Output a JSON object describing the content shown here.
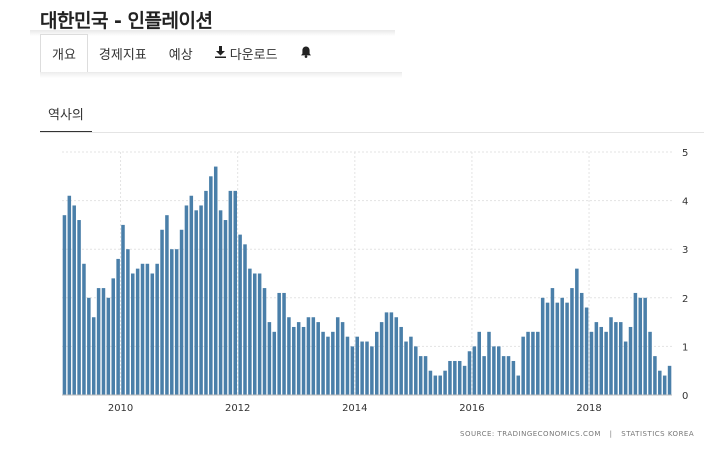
{
  "header": {
    "title": "대한민국 - 인플레이션"
  },
  "tabs": [
    {
      "label": "개요",
      "active": true,
      "icon": ""
    },
    {
      "label": "경제지표",
      "active": false,
      "icon": ""
    },
    {
      "label": "예상",
      "active": false,
      "icon": ""
    },
    {
      "label": "다운로드",
      "active": false,
      "icon": "download-icon"
    },
    {
      "label": "",
      "active": false,
      "icon": "bell-icon"
    }
  ],
  "subtab": {
    "label": "역사의"
  },
  "source": {
    "left": "SOURCE: TRADINGECONOMICS.COM",
    "sep": "|",
    "right": "STATISTICS KOREA"
  },
  "colors": {
    "bar": "#4a7fa9",
    "grid": "#e3e3e3"
  },
  "chart_data": {
    "type": "bar",
    "title": "",
    "xlabel": "",
    "ylabel": "",
    "ylim": [
      0,
      5
    ],
    "yticks": [
      0,
      1,
      2,
      3,
      4,
      5
    ],
    "xticks": [
      "2010",
      "2012",
      "2014",
      "2016",
      "2018"
    ],
    "grid": true,
    "start": "2009-01",
    "frequency": "monthly",
    "series": [
      {
        "values": [
          3.7,
          4.1,
          3.9,
          3.6,
          2.7,
          2.0,
          1.6,
          2.2,
          2.2,
          2.0,
          2.4,
          2.8,
          3.5,
          3.0,
          2.5,
          2.6,
          2.7,
          2.7,
          2.5,
          2.7,
          3.4,
          3.7,
          3.0,
          3.0,
          3.4,
          3.9,
          4.1,
          3.8,
          3.9,
          4.2,
          4.5,
          4.7,
          3.8,
          3.6,
          4.2,
          4.2,
          3.3,
          3.1,
          2.6,
          2.5,
          2.5,
          2.2,
          1.5,
          1.3,
          2.1,
          2.1,
          1.6,
          1.4,
          1.5,
          1.4,
          1.6,
          1.6,
          1.5,
          1.3,
          1.2,
          1.3,
          1.6,
          1.5,
          1.2,
          1.0,
          1.2,
          1.1,
          1.1,
          1.0,
          1.3,
          1.5,
          1.7,
          1.7,
          1.6,
          1.4,
          1.1,
          1.2,
          1.0,
          0.8,
          0.8,
          0.5,
          0.4,
          0.4,
          0.5,
          0.7,
          0.7,
          0.7,
          0.6,
          0.9,
          1.0,
          1.3,
          0.8,
          1.3,
          1.0,
          1.0,
          0.8,
          0.8,
          0.7,
          0.4,
          1.2,
          1.3,
          1.3,
          1.3,
          2.0,
          1.9,
          2.2,
          1.9,
          2.0,
          1.9,
          2.2,
          2.6,
          2.1,
          1.8,
          1.3,
          1.5,
          1.4,
          1.3,
          1.6,
          1.5,
          1.5,
          1.1,
          1.4,
          2.1,
          2.0,
          2.0,
          1.3,
          0.8,
          0.5,
          0.4,
          0.6
        ]
      }
    ]
  }
}
